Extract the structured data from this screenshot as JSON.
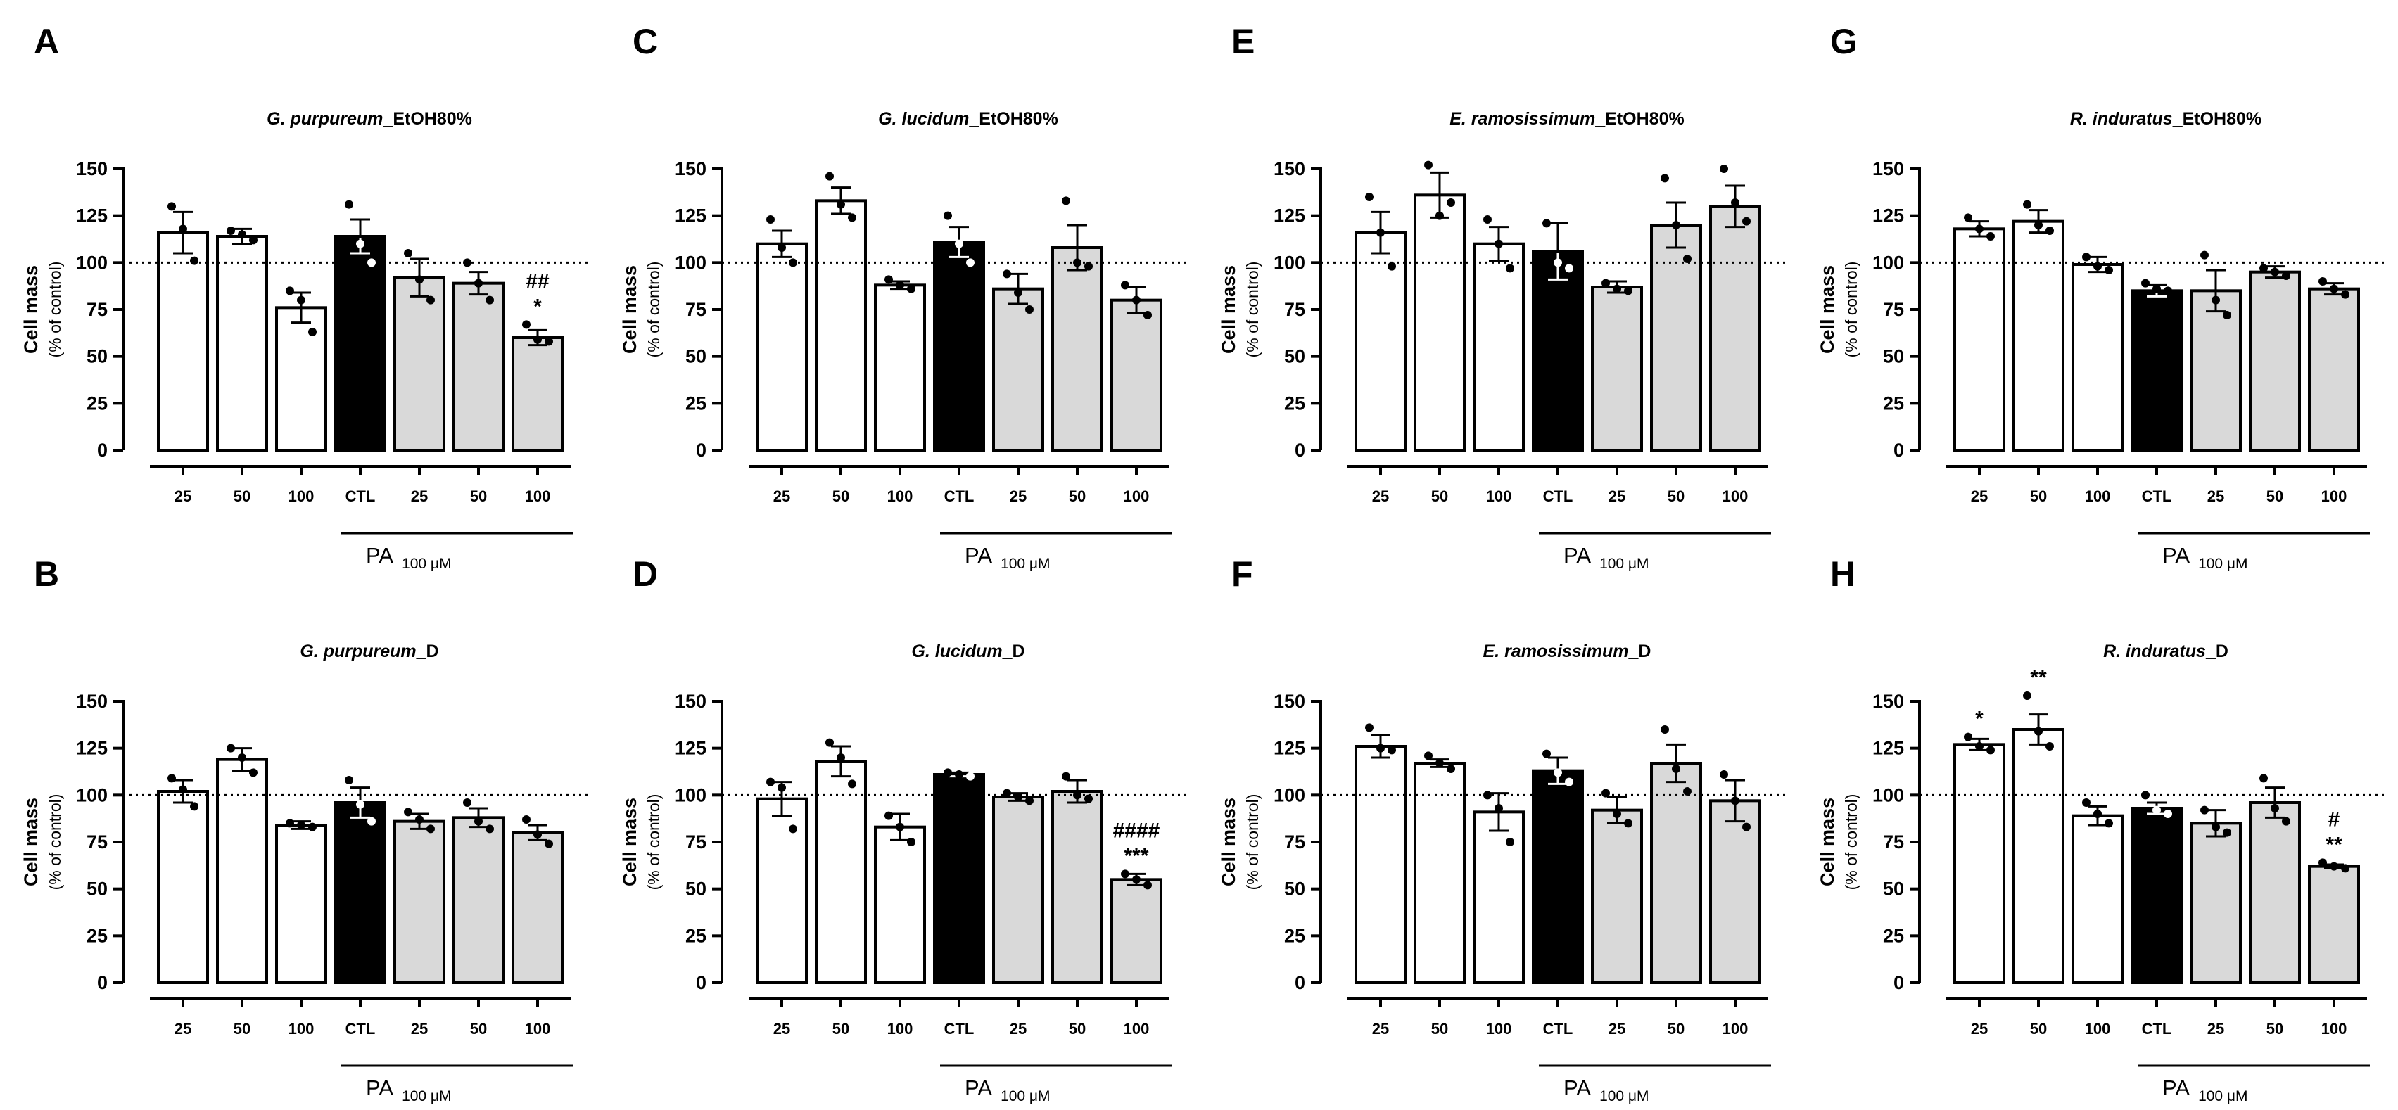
{
  "y_axis": {
    "label": "Cell mass",
    "sublabel": "(% of control)",
    "ticks": [
      0,
      25,
      50,
      75,
      100,
      125,
      150
    ],
    "ylim": [
      0,
      150
    ],
    "reference_line": 100
  },
  "x_label": {
    "pa": "PA",
    "pa_sub": "100 μM"
  },
  "colors": {
    "treatment": "#ffffff",
    "control": "#000000",
    "pa_combo": "#d9d9d9",
    "edge": "#000000"
  },
  "chart_data": [
    {
      "panel": "A",
      "type": "bar",
      "title_species": "G. purpureum",
      "title_suffix": "_EtOH80%",
      "categories": [
        "25",
        "50",
        "100",
        "CTL",
        "25",
        "50",
        "100"
      ],
      "values": [
        116,
        114,
        76,
        114,
        92,
        89,
        60
      ],
      "errors": [
        11,
        4,
        8,
        9,
        10,
        6,
        4
      ],
      "points": [
        [
          130,
          118,
          101
        ],
        [
          117,
          115,
          112
        ],
        [
          85,
          80,
          63
        ],
        [
          131,
          110,
          100
        ],
        [
          105,
          91,
          80
        ],
        [
          100,
          89,
          80
        ],
        [
          67,
          59,
          58
        ]
      ],
      "annotations": [
        {
          "bar": 6,
          "lines": [
            "##",
            "*"
          ]
        }
      ]
    },
    {
      "panel": "B",
      "type": "bar",
      "title_species": "G. purpureum",
      "title_suffix": "_D",
      "categories": [
        "25",
        "50",
        "100",
        "CTL",
        "25",
        "50",
        "100"
      ],
      "values": [
        102,
        119,
        84,
        96,
        86,
        88,
        80
      ],
      "errors": [
        6,
        6,
        2,
        8,
        4,
        5,
        4
      ],
      "points": [
        [
          109,
          103,
          94
        ],
        [
          125,
          120,
          112
        ],
        [
          85,
          84,
          83
        ],
        [
          108,
          95,
          86
        ],
        [
          91,
          87,
          82
        ],
        [
          96,
          86,
          82
        ],
        [
          87,
          79,
          74
        ]
      ],
      "annotations": []
    },
    {
      "panel": "C",
      "type": "bar",
      "title_species": "G. lucidum",
      "title_suffix": "_EtOH80%",
      "categories": [
        "25",
        "50",
        "100",
        "CTL",
        "25",
        "50",
        "100"
      ],
      "values": [
        110,
        133,
        88,
        111,
        86,
        108,
        80
      ],
      "errors": [
        7,
        7,
        2,
        8,
        8,
        12,
        7
      ],
      "points": [
        [
          123,
          108,
          100
        ],
        [
          146,
          131,
          124
        ],
        [
          91,
          88,
          86
        ],
        [
          125,
          110,
          100
        ],
        [
          94,
          84,
          75
        ],
        [
          133,
          100,
          98
        ],
        [
          88,
          80,
          72
        ]
      ],
      "annotations": []
    },
    {
      "panel": "D",
      "type": "bar",
      "title_species": "G. lucidum",
      "title_suffix": "_D",
      "categories": [
        "25",
        "50",
        "100",
        "CTL",
        "25",
        "50",
        "100"
      ],
      "values": [
        98,
        118,
        83,
        111,
        99,
        102,
        55
      ],
      "errors": [
        9,
        8,
        7,
        1,
        2,
        6,
        3
      ],
      "points": [
        [
          107,
          104,
          82
        ],
        [
          128,
          120,
          106
        ],
        [
          89,
          83,
          75
        ],
        [
          112,
          111,
          110
        ],
        [
          101,
          99,
          97
        ],
        [
          110,
          100,
          98
        ],
        [
          58,
          55,
          52
        ]
      ],
      "annotations": [
        {
          "bar": 6,
          "lines": [
            "####",
            "***"
          ]
        }
      ]
    },
    {
      "panel": "E",
      "type": "bar",
      "title_species": "E. ramosissimum",
      "title_suffix": "_EtOH80%",
      "categories": [
        "25",
        "50",
        "100",
        "CTL",
        "25",
        "50",
        "100"
      ],
      "values": [
        116,
        136,
        110,
        106,
        87,
        120,
        130
      ],
      "errors": [
        11,
        12,
        9,
        15,
        3,
        12,
        11
      ],
      "points": [
        [
          135,
          116,
          98
        ],
        [
          152,
          125,
          132
        ],
        [
          123,
          110,
          97
        ],
        [
          121,
          100,
          97
        ],
        [
          89,
          86,
          85
        ],
        [
          145,
          120,
          102
        ],
        [
          150,
          132,
          122
        ]
      ],
      "annotations": []
    },
    {
      "panel": "F",
      "type": "bar",
      "title_species": "E. ramosissimum",
      "title_suffix": "_D",
      "categories": [
        "25",
        "50",
        "100",
        "CTL",
        "25",
        "50",
        "100"
      ],
      "values": [
        126,
        117,
        91,
        113,
        92,
        117,
        97
      ],
      "errors": [
        6,
        2,
        10,
        7,
        7,
        10,
        11
      ],
      "points": [
        [
          136,
          125,
          124
        ],
        [
          121,
          117,
          114
        ],
        [
          100,
          93,
          75
        ],
        [
          122,
          112,
          107
        ],
        [
          101,
          90,
          85
        ],
        [
          135,
          114,
          102
        ],
        [
          111,
          97,
          83
        ]
      ],
      "annotations": []
    },
    {
      "panel": "G",
      "type": "bar",
      "title_species": "R. induratus",
      "title_suffix": "_EtOH80%",
      "categories": [
        "25",
        "50",
        "100",
        "CTL",
        "25",
        "50",
        "100"
      ],
      "values": [
        118,
        122,
        99,
        85,
        85,
        95,
        86
      ],
      "errors": [
        4,
        6,
        4,
        3,
        11,
        3,
        3
      ],
      "points": [
        [
          124,
          118,
          114
        ],
        [
          131,
          120,
          117
        ],
        [
          103,
          98,
          96
        ],
        [
          89,
          86,
          85
        ],
        [
          104,
          80,
          72
        ],
        [
          97,
          95,
          93
        ],
        [
          90,
          86,
          83
        ]
      ],
      "annotations": []
    },
    {
      "panel": "H",
      "type": "bar",
      "title_species": "R. induratus",
      "title_suffix": "_D",
      "categories": [
        "25",
        "50",
        "100",
        "CTL",
        "25",
        "50",
        "100"
      ],
      "values": [
        127,
        135,
        89,
        93,
        85,
        96,
        62
      ],
      "errors": [
        3,
        8,
        5,
        3,
        7,
        8,
        1
      ],
      "points": [
        [
          131,
          126,
          124
        ],
        [
          153,
          134,
          126
        ],
        [
          96,
          90,
          85
        ],
        [
          100,
          92,
          90
        ],
        [
          92,
          83,
          80
        ],
        [
          109,
          93,
          86
        ],
        [
          64,
          62,
          61
        ]
      ],
      "annotations": [
        {
          "bar": 0,
          "lines": [
            "*"
          ]
        },
        {
          "bar": 1,
          "lines": [
            "**"
          ]
        },
        {
          "bar": 6,
          "lines": [
            "#",
            "**"
          ]
        }
      ]
    }
  ]
}
